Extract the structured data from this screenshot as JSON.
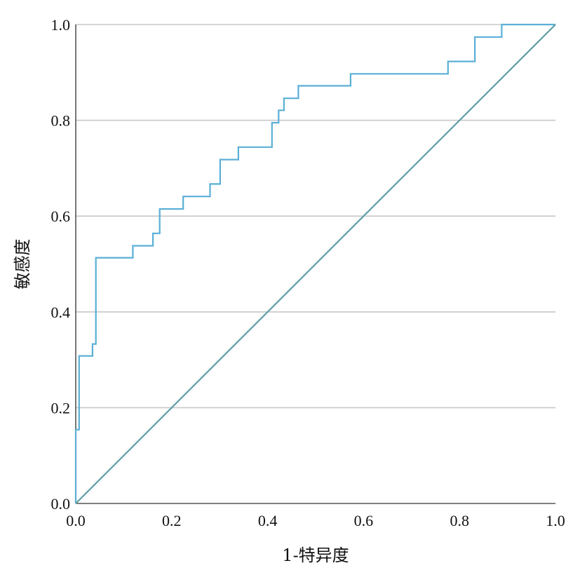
{
  "chart_data": {
    "type": "line",
    "title": "",
    "xlabel": "1-特异度",
    "ylabel": "敏感度",
    "xlim": [
      0,
      1
    ],
    "ylim": [
      0,
      1
    ],
    "x_ticks": [
      "0.0",
      "0.2",
      "0.4",
      "0.6",
      "0.8",
      "1.0"
    ],
    "y_ticks": [
      "0.0",
      "0.2",
      "0.4",
      "0.6",
      "0.8",
      "1.0"
    ],
    "grid": "horizontal",
    "legend": "none",
    "colors": {
      "roc": "#5aafd6",
      "reference": "#5f9ea4",
      "grid": "#c8c8c8",
      "axis": "#555555"
    },
    "series": [
      {
        "style": "step",
        "points": [
          [
            0.0,
            0.0
          ],
          [
            0.0,
            0.154
          ],
          [
            0.007,
            0.154
          ],
          [
            0.007,
            0.308
          ],
          [
            0.035,
            0.308
          ],
          [
            0.035,
            0.333
          ],
          [
            0.042,
            0.333
          ],
          [
            0.042,
            0.513
          ],
          [
            0.119,
            0.513
          ],
          [
            0.119,
            0.538
          ],
          [
            0.161,
            0.538
          ],
          [
            0.161,
            0.564
          ],
          [
            0.175,
            0.564
          ],
          [
            0.175,
            0.615
          ],
          [
            0.224,
            0.615
          ],
          [
            0.224,
            0.641
          ],
          [
            0.28,
            0.641
          ],
          [
            0.28,
            0.667
          ],
          [
            0.301,
            0.667
          ],
          [
            0.301,
            0.718
          ],
          [
            0.339,
            0.718
          ],
          [
            0.339,
            0.744
          ],
          [
            0.409,
            0.744
          ],
          [
            0.409,
            0.795
          ],
          [
            0.423,
            0.795
          ],
          [
            0.423,
            0.821
          ],
          [
            0.434,
            0.821
          ],
          [
            0.434,
            0.846
          ],
          [
            0.464,
            0.846
          ],
          [
            0.464,
            0.872
          ],
          [
            0.573,
            0.872
          ],
          [
            0.573,
            0.897
          ],
          [
            0.776,
            0.897
          ],
          [
            0.776,
            0.923
          ],
          [
            0.832,
            0.923
          ],
          [
            0.832,
            0.974
          ],
          [
            0.888,
            0.974
          ],
          [
            0.888,
            1.0
          ],
          [
            1.0,
            1.0
          ]
        ]
      },
      {
        "style": "reference",
        "points": [
          [
            0,
            0
          ],
          [
            1,
            1
          ]
        ]
      }
    ]
  }
}
